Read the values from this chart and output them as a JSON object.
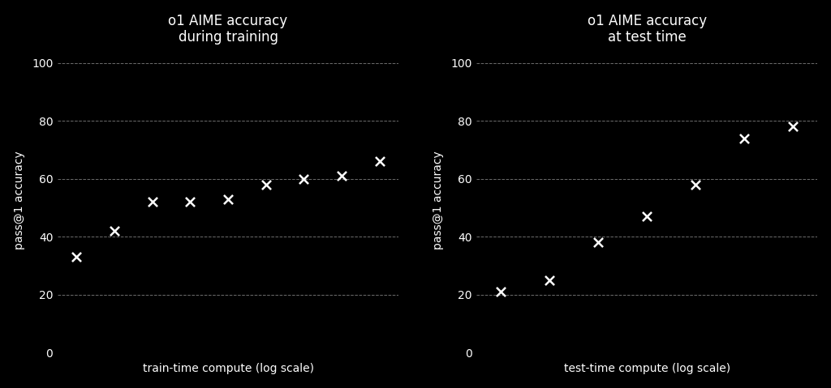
{
  "left": {
    "title": "o1 AIME accuracy\nduring training",
    "xlabel": "train-time compute (log scale)",
    "ylabel": "pass@1 accuracy",
    "x": [
      1,
      2,
      3,
      4,
      5,
      6,
      7,
      8,
      9
    ],
    "y": [
      33,
      42,
      52,
      52,
      53,
      58,
      60,
      61,
      66
    ]
  },
  "right": {
    "title": "o1 AIME accuracy\nat test time",
    "xlabel": "test-time compute (log scale)",
    "ylabel": "pass@1 accuracy",
    "x": [
      1,
      2,
      3,
      4,
      5,
      6,
      7
    ],
    "y": [
      21,
      25,
      38,
      47,
      58,
      74,
      78
    ]
  },
  "ylim": [
    0,
    105
  ],
  "yticks": [
    0,
    20,
    40,
    60,
    80,
    100
  ],
  "background_color": "#000000",
  "text_color": "#ffffff",
  "marker_color": "#ffffff",
  "grid_color": "#888888",
  "marker": "x",
  "marker_size": 8,
  "marker_linewidth": 1.8,
  "title_fontsize": 12,
  "label_fontsize": 10,
  "tick_fontsize": 10
}
